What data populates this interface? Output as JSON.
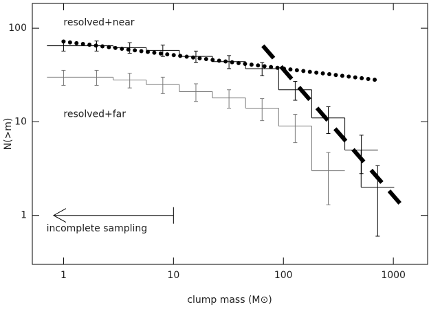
{
  "chart_data": {
    "type": "line",
    "xlabel": "clump mass (M⊙)",
    "ylabel": "N(>m)",
    "xscale": "log",
    "yscale": "log",
    "xlim": [
      0.52,
      2050
    ],
    "ylim": [
      0.3,
      184
    ],
    "xticks": [
      1,
      10,
      100,
      1000
    ],
    "yticks": [
      1,
      10,
      100
    ],
    "annotations": [
      {
        "text": "resolved+near",
        "x": 1,
        "y": 115
      },
      {
        "text": "resolved+far",
        "x": 1,
        "y": 12
      },
      {
        "text": "incomplete sampling",
        "x": 0.7,
        "y": 0.72
      }
    ],
    "series": [
      {
        "name": "resolved+near",
        "style": "step",
        "color": "#000000",
        "x": [
          1,
          2,
          4,
          8,
          16,
          32,
          64,
          128,
          256,
          512,
          720
        ],
        "values": [
          65,
          65,
          62,
          58,
          50,
          44,
          37,
          22,
          11,
          5,
          2
        ],
        "errors": [
          8,
          8,
          8,
          8,
          7,
          7,
          6,
          5,
          3.5,
          2.2,
          1.4
        ]
      },
      {
        "name": "resolved+far",
        "style": "step",
        "color": "#777777",
        "x": [
          1,
          2,
          4,
          8,
          16,
          32,
          64,
          128,
          256
        ],
        "values": [
          30,
          30,
          28,
          25,
          21,
          18,
          14,
          9,
          3
        ],
        "errors": [
          5.5,
          5.5,
          5,
          5,
          4.5,
          4,
          3.7,
          3,
          1.7
        ]
      },
      {
        "style": "dotted",
        "color": "#000000",
        "x": [
          1,
          700
        ],
        "values": [
          72,
          28
        ]
      },
      {
        "style": "dashed",
        "color": "#000000",
        "x": [
          65,
          1250
        ],
        "values": [
          65,
          1.2
        ]
      }
    ]
  }
}
